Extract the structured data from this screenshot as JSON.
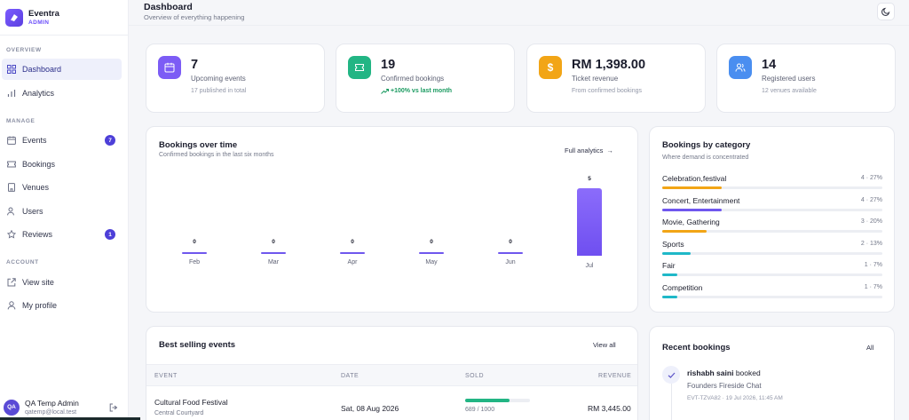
{
  "brand": {
    "name": "Eventra",
    "role": "ADMIN"
  },
  "sidebar": {
    "sections": {
      "overview": "OVERVIEW",
      "manage": "MANAGE",
      "account": "ACCOUNT"
    },
    "items": [
      {
        "label": "Dashboard",
        "icon": "grid-icon",
        "active": true
      },
      {
        "label": "Analytics",
        "icon": "bar-chart-icon"
      },
      {
        "label": "Events",
        "icon": "calendar-icon",
        "badge": "7"
      },
      {
        "label": "Bookings",
        "icon": "ticket-icon"
      },
      {
        "label": "Venues",
        "icon": "building-icon"
      },
      {
        "label": "Users",
        "icon": "users-icon"
      },
      {
        "label": "Reviews",
        "icon": "star-icon",
        "badge": "1"
      },
      {
        "label": "View site",
        "icon": "external-link-icon"
      },
      {
        "label": "My profile",
        "icon": "user-icon"
      }
    ],
    "user": {
      "initials": "QA",
      "name": "QA Temp Admin",
      "email": "qatemp@local.test"
    }
  },
  "header": {
    "title": "Dashboard",
    "subtitle": "Overview of everything happening"
  },
  "stats": [
    {
      "value": "7",
      "label": "Upcoming events",
      "note": "17 published in total",
      "color": "#7c5cf5"
    },
    {
      "value": "19",
      "label": "Confirmed bookings",
      "note": "+100% vs last month",
      "color": "#22b584"
    },
    {
      "value": "RM 1,398.00",
      "label": "Ticket revenue",
      "note": "From confirmed bookings",
      "color": "#f2a516"
    },
    {
      "value": "14",
      "label": "Registered users",
      "note": "12 venues available",
      "color": "#4a8ef0"
    }
  ],
  "bookings_chart": {
    "title": "Bookings over time",
    "subtitle": "Confirmed bookings in the last six months",
    "link": "Full analytics",
    "arrow": "→"
  },
  "chart_data": {
    "type": "bar",
    "categories": [
      "Feb",
      "Mar",
      "Apr",
      "May",
      "Jun",
      "Jul"
    ],
    "values": [
      0,
      0,
      0,
      0,
      0,
      5
    ],
    "value_labels": [
      "0",
      "0",
      "0",
      "0",
      "0",
      "5"
    ],
    "title": "Bookings over time",
    "xlabel": "",
    "ylabel": "",
    "ylim": [
      0,
      5
    ]
  },
  "categories_card": {
    "title": "Bookings by category",
    "subtitle": "Where demand is concentrated",
    "rows": [
      {
        "name": "Celebration,festival",
        "value": "4 · 27%",
        "pct": 27,
        "color": "#f2a516"
      },
      {
        "name": "Concert, Entertainment",
        "value": "4 · 27%",
        "pct": 27,
        "color": "#6f57ee"
      },
      {
        "name": "Movie, Gathering",
        "value": "3 · 20%",
        "pct": 20,
        "color": "#f2a516"
      },
      {
        "name": "Sports",
        "value": "2 · 13%",
        "pct": 13,
        "color": "#1fb8c8"
      },
      {
        "name": "Fair",
        "value": "1 · 7%",
        "pct": 7,
        "color": "#1fb8c8"
      },
      {
        "name": "Competition",
        "value": "1 · 7%",
        "pct": 7,
        "color": "#1fb8c8"
      }
    ]
  },
  "best_selling": {
    "title": "Best selling events",
    "link": "View all",
    "columns": [
      "EVENT",
      "DATE",
      "SOLD",
      "REVENUE"
    ],
    "rows": [
      {
        "event": "Cultural Food Festival",
        "venue": "Central Courtyard",
        "date": "Sat, 08 Aug 2026",
        "sold": "689 / 1000",
        "sold_frac": 0.689,
        "revenue": "RM 3,445.00"
      }
    ]
  },
  "recent_bookings": {
    "title": "Recent bookings",
    "link": "All",
    "items": [
      {
        "user": "rishabh saini",
        "action": "booked",
        "event": "Founders Fireside Chat",
        "meta": "EVT-TZVA82 · 19 Jul 2026, 11:45 AM"
      }
    ]
  }
}
